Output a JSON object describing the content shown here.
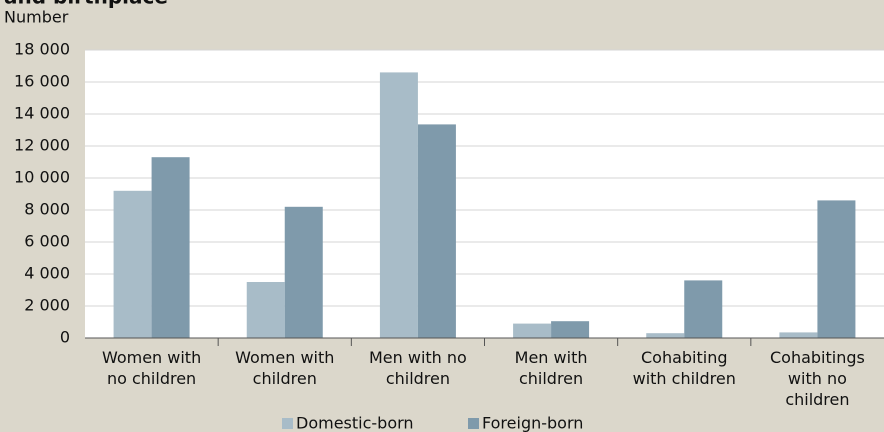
{
  "chart_data": {
    "type": "bar",
    "title": "and birthplace",
    "y_label": "Number",
    "categories": [
      "Women with\nno children",
      "Women with\nchildren",
      "Men with no\nchildren",
      "Men with\nchildren",
      "Cohabiting\nwith children",
      "Cohabitings\nwith no\nchildren"
    ],
    "series": [
      {
        "name": "Domestic-born",
        "color": "#a8bcc8",
        "values": [
          9200,
          3500,
          16600,
          900,
          300,
          350
        ]
      },
      {
        "name": "Foreign-born",
        "color": "#7f9aab",
        "values": [
          11300,
          8200,
          13350,
          1050,
          3600,
          8600
        ]
      }
    ],
    "ylim": [
      0,
      18000
    ],
    "yticks": [
      0,
      {
        "value": 2000,
        "label": "2 000"
      },
      {
        "value": 4000,
        "label": "4 000"
      },
      {
        "value": 6000,
        "label": "6 000"
      },
      {
        "value": 8000,
        "label": "8 000"
      },
      {
        "value": 10000,
        "label": "10 000"
      },
      {
        "value": 12000,
        "label": "12 000"
      },
      {
        "value": 14000,
        "label": "14 000"
      },
      {
        "value": 16000,
        "label": "16 000"
      },
      {
        "value": 18000,
        "label": "18 000"
      }
    ],
    "grid": true,
    "legend": "bottom"
  }
}
